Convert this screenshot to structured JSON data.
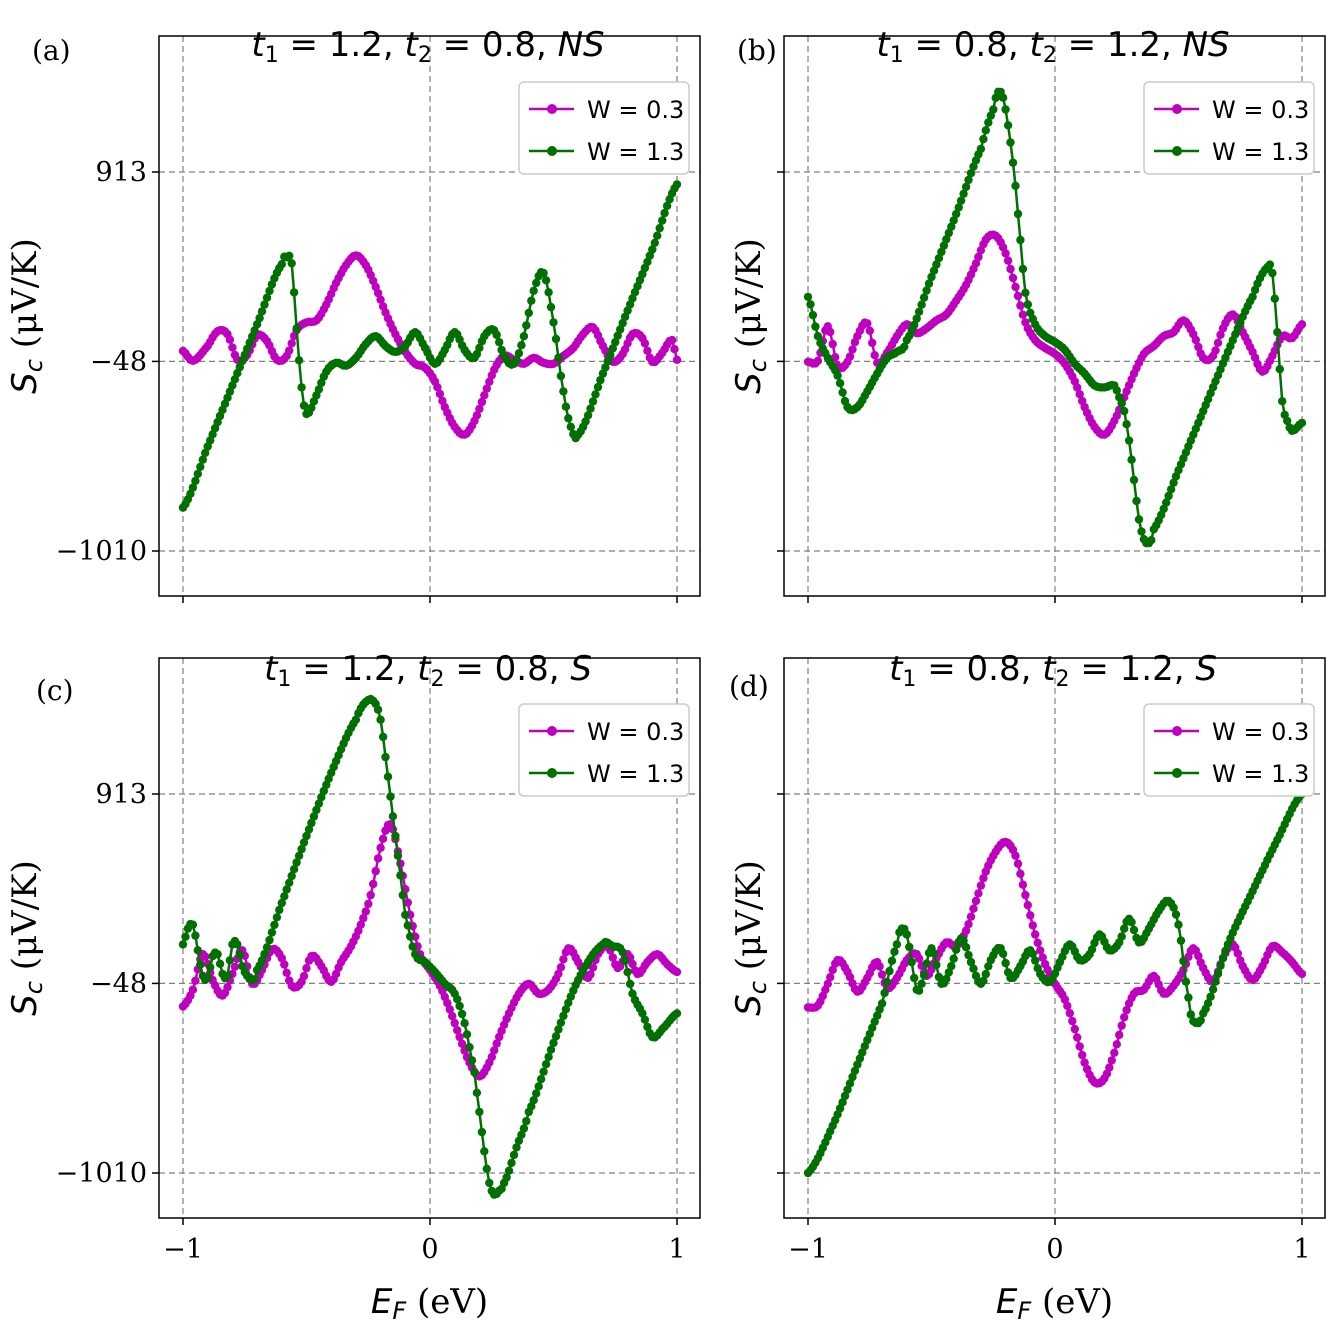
{
  "figure": {
    "x_axis_label": "E_F (eV)",
    "y_axis_label": "S_c (μV/K)",
    "x_ticks": [
      -1,
      0,
      1
    ],
    "x_tick_labels": [
      "−1",
      "0",
      "1"
    ],
    "y_ticks": [
      -1010,
      -48,
      913
    ],
    "y_tick_labels": [
      "−1010",
      "−48",
      "913"
    ],
    "xlim": [
      -1.1,
      1.1
    ],
    "ylim": [
      -1230,
      1580
    ],
    "grid": "on (dashed, at ticks)",
    "legend_placement": "top-right",
    "colors": {
      "W03": "#bf00bf",
      "W13": "#007000",
      "grid": "#808080"
    }
  },
  "chart_data": [
    {
      "type": "line",
      "panel_label": "(a)",
      "title": "t_1 = 1.2, t_2 = 0.8, NS",
      "title_parts": {
        "t1": "1.2",
        "t2": "0.8",
        "phase": "NS"
      },
      "xlabel": "E_F (eV)",
      "ylabel": "S_c (μV/K)",
      "xlim": [
        -1.1,
        1.1
      ],
      "ylim": [
        -1230,
        1580
      ],
      "series": [
        {
          "name": "W = 0.3",
          "color": "#bf00bf",
          "x": [
            -1.0,
            -0.96,
            -0.9,
            -0.86,
            -0.82,
            -0.78,
            -0.74,
            -0.7,
            -0.66,
            -0.62,
            -0.58,
            -0.54,
            -0.5,
            -0.46,
            -0.42,
            -0.38,
            -0.34,
            -0.3,
            -0.26,
            -0.22,
            -0.18,
            -0.14,
            -0.1,
            -0.06,
            -0.02,
            0.02,
            0.06,
            0.1,
            0.14,
            0.18,
            0.22,
            0.26,
            0.3,
            0.34,
            0.38,
            0.42,
            0.46,
            0.5,
            0.54,
            0.58,
            0.62,
            0.66,
            0.7,
            0.74,
            0.78,
            0.82,
            0.86,
            0.9,
            0.94,
            0.98,
            1.0
          ],
          "values": [
            5,
            -45,
            30,
            105,
            90,
            -40,
            -15,
            85,
            55,
            -40,
            -20,
            110,
            150,
            160,
            240,
            350,
            440,
            490,
            440,
            330,
            200,
            90,
            0,
            -60,
            -80,
            -150,
            -280,
            -380,
            -420,
            -350,
            -220,
            -90,
            -20,
            -40,
            -60,
            -30,
            -55,
            -60,
            -20,
            20,
            90,
            125,
            30,
            -50,
            -10,
            90,
            70,
            -50,
            -5,
            60,
            -40
          ]
        },
        {
          "name": "W = 1.3",
          "color": "#007000",
          "x": [
            -1.0,
            -0.9,
            -0.8,
            -0.7,
            -0.6,
            -0.58,
            -0.56,
            -0.54,
            -0.52,
            -0.5,
            -0.46,
            -0.42,
            -0.38,
            -0.34,
            -0.3,
            -0.26,
            -0.22,
            -0.18,
            -0.14,
            -0.1,
            -0.06,
            -0.02,
            0.02,
            0.06,
            0.1,
            0.14,
            0.18,
            0.22,
            0.26,
            0.3,
            0.34,
            0.38,
            0.42,
            0.46,
            0.5,
            0.54,
            0.57,
            0.6,
            0.7,
            0.8,
            0.9,
            1.0
          ],
          "values": [
            -790,
            -480,
            -170,
            140,
            445,
            480,
            450,
            120,
            -180,
            -315,
            -220,
            -100,
            -55,
            -70,
            -30,
            40,
            80,
            30,
            0,
            30,
            100,
            20,
            -60,
            10,
            100,
            10,
            -30,
            80,
            110,
            -20,
            -60,
            80,
            310,
            400,
            150,
            -200,
            -380,
            -420,
            -110,
            210,
            520,
            850
          ]
        }
      ]
    },
    {
      "type": "line",
      "panel_label": "(b)",
      "title": "t_1 = 0.8, t_2 = 1.2, NS",
      "title_parts": {
        "t1": "0.8",
        "t2": "1.2",
        "phase": "NS"
      },
      "xlabel": "",
      "ylabel": "S_c (μV/K)",
      "xlim": [
        -1.1,
        1.1
      ],
      "ylim": [
        -1230,
        1580
      ],
      "series": [
        {
          "name": "W = 0.3",
          "color": "#bf00bf",
          "x": [
            -1.0,
            -0.96,
            -0.92,
            -0.88,
            -0.84,
            -0.8,
            -0.76,
            -0.72,
            -0.68,
            -0.64,
            -0.6,
            -0.56,
            -0.52,
            -0.48,
            -0.44,
            -0.4,
            -0.36,
            -0.32,
            -0.28,
            -0.24,
            -0.2,
            -0.16,
            -0.12,
            -0.08,
            -0.04,
            0.0,
            0.04,
            0.08,
            0.12,
            0.16,
            0.2,
            0.24,
            0.28,
            0.32,
            0.36,
            0.4,
            0.44,
            0.48,
            0.52,
            0.56,
            0.6,
            0.64,
            0.68,
            0.72,
            0.76,
            0.8,
            0.84,
            0.88,
            0.92,
            0.96,
            1.0
          ],
          "values": [
            -50,
            -45,
            130,
            -70,
            -50,
            80,
            145,
            -55,
            -5,
            80,
            140,
            95,
            120,
            160,
            190,
            260,
            340,
            450,
            570,
            590,
            500,
            330,
            150,
            60,
            20,
            -10,
            -60,
            -150,
            -280,
            -380,
            -420,
            -350,
            -230,
            -110,
            -10,
            30,
            80,
            100,
            160,
            90,
            -30,
            -20,
            120,
            190,
            100,
            0,
            -100,
            -20,
            80,
            70,
            140
          ]
        },
        {
          "name": "W = 1.3",
          "color": "#007000",
          "x": [
            -1.0,
            -0.96,
            -0.92,
            -0.88,
            -0.84,
            -0.8,
            -0.76,
            -0.72,
            -0.68,
            -0.64,
            -0.6,
            -0.5,
            -0.4,
            -0.3,
            -0.25,
            -0.23,
            -0.21,
            -0.19,
            -0.17,
            -0.15,
            -0.12,
            -0.08,
            -0.04,
            0.0,
            0.04,
            0.08,
            0.12,
            0.16,
            0.2,
            0.24,
            0.26,
            0.28,
            0.3,
            0.32,
            0.34,
            0.36,
            0.38,
            0.4,
            0.5,
            0.6,
            0.7,
            0.8,
            0.86,
            0.88,
            0.9,
            0.92,
            0.94,
            0.96,
            1.0
          ],
          "values": [
            280,
            80,
            -30,
            -120,
            -280,
            -280,
            -200,
            -110,
            -30,
            0,
            60,
            380,
            700,
            1030,
            1230,
            1320,
            1290,
            1150,
            960,
            700,
            300,
            140,
            80,
            50,
            10,
            -60,
            -110,
            -170,
            -180,
            -170,
            -230,
            -300,
            -450,
            -650,
            -850,
            -950,
            -970,
            -900,
            -600,
            -300,
            0,
            280,
            430,
            400,
            100,
            -250,
            -350,
            -400,
            -360
          ]
        }
      ]
    },
    {
      "type": "line",
      "panel_label": "(c)",
      "title": "t_1 = 1.2, t_2 = 0.8, S",
      "title_parts": {
        "t1": "1.2",
        "t2": "0.8",
        "phase": "S"
      },
      "xlabel": "E_F (eV)",
      "ylabel": "S_c (μV/K)",
      "xlim": [
        -1.1,
        1.1
      ],
      "ylim": [
        -1230,
        1580
      ],
      "series": [
        {
          "name": "W = 0.3",
          "color": "#bf00bf",
          "x": [
            -1.0,
            -0.96,
            -0.92,
            -0.88,
            -0.84,
            -0.8,
            -0.76,
            -0.72,
            -0.68,
            -0.64,
            -0.6,
            -0.56,
            -0.52,
            -0.48,
            -0.44,
            -0.4,
            -0.36,
            -0.32,
            -0.28,
            -0.24,
            -0.2,
            -0.16,
            -0.12,
            -0.08,
            -0.04,
            0.0,
            0.04,
            0.08,
            0.12,
            0.16,
            0.2,
            0.24,
            0.28,
            0.32,
            0.36,
            0.4,
            0.44,
            0.48,
            0.52,
            0.56,
            0.6,
            0.64,
            0.68,
            0.72,
            0.76,
            0.8,
            0.84,
            0.88,
            0.92,
            0.96,
            1.0
          ],
          "values": [
            -165,
            -80,
            100,
            -30,
            -110,
            0,
            120,
            -50,
            20,
            125,
            80,
            -60,
            -40,
            90,
            40,
            -40,
            60,
            140,
            250,
            400,
            640,
            760,
            560,
            300,
            100,
            20,
            -60,
            -180,
            -320,
            -450,
            -520,
            -450,
            -320,
            -200,
            -100,
            -50,
            -100,
            -80,
            0,
            130,
            60,
            -20,
            100,
            140,
            30,
            100,
            0,
            60,
            100,
            50,
            10
          ]
        },
        {
          "name": "W = 1.3",
          "color": "#007000",
          "x": [
            -1.0,
            -0.98,
            -0.96,
            -0.94,
            -0.92,
            -0.9,
            -0.88,
            -0.86,
            -0.84,
            -0.82,
            -0.8,
            -0.78,
            -0.76,
            -0.74,
            -0.72,
            -0.7,
            -0.6,
            -0.5,
            -0.4,
            -0.3,
            -0.25,
            -0.22,
            -0.2,
            -0.18,
            -0.16,
            -0.14,
            -0.12,
            -0.1,
            -0.06,
            -0.02,
            0.02,
            0.06,
            0.1,
            0.14,
            0.18,
            0.2,
            0.22,
            0.24,
            0.26,
            0.28,
            0.3,
            0.35,
            0.4,
            0.5,
            0.6,
            0.7,
            0.74,
            0.78,
            0.82,
            0.86,
            0.9,
            0.94,
            1.0
          ],
          "values": [
            150,
            230,
            250,
            120,
            -10,
            -20,
            90,
            100,
            0,
            -10,
            150,
            150,
            40,
            -10,
            -30,
            20,
            360,
            700,
            1020,
            1290,
            1390,
            1370,
            1290,
            1100,
            900,
            700,
            500,
            300,
            100,
            60,
            10,
            -50,
            -100,
            -250,
            -500,
            -700,
            -900,
            -1060,
            -1120,
            -1100,
            -1060,
            -880,
            -700,
            -350,
            -30,
            150,
            140,
            110,
            -100,
            -200,
            -320,
            -280,
            -200
          ]
        }
      ]
    },
    {
      "type": "line",
      "panel_label": "(d)",
      "title": "t_1 = 0.8, t_2 = 1.2, S",
      "title_parts": {
        "t1": "0.8",
        "t2": "1.2",
        "phase": "S"
      },
      "xlabel": "E_F (eV)",
      "ylabel": "S_c (μV/K)",
      "xlim": [
        -1.1,
        1.1
      ],
      "ylim": [
        -1230,
        1580
      ],
      "series": [
        {
          "name": "W = 0.3",
          "color": "#bf00bf",
          "x": [
            -1.0,
            -0.96,
            -0.92,
            -0.88,
            -0.84,
            -0.8,
            -0.76,
            -0.72,
            -0.68,
            -0.64,
            -0.6,
            -0.56,
            -0.52,
            -0.48,
            -0.44,
            -0.4,
            -0.36,
            -0.32,
            -0.28,
            -0.24,
            -0.2,
            -0.16,
            -0.12,
            -0.08,
            -0.04,
            0.0,
            0.04,
            0.08,
            0.12,
            0.16,
            0.2,
            0.24,
            0.28,
            0.32,
            0.36,
            0.4,
            0.44,
            0.48,
            0.52,
            0.56,
            0.6,
            0.64,
            0.68,
            0.72,
            0.76,
            0.8,
            0.84,
            0.88,
            0.92,
            0.96,
            1.0
          ],
          "values": [
            -170,
            -160,
            -50,
            70,
            10,
            -90,
            -20,
            60,
            -70,
            -20,
            70,
            100,
            -10,
            80,
            160,
            140,
            220,
            370,
            520,
            620,
            670,
            600,
            400,
            200,
            50,
            -50,
            -130,
            -280,
            -450,
            -550,
            -530,
            -400,
            -220,
            -100,
            -80,
            -10,
            -100,
            -60,
            20,
            130,
            30,
            -40,
            80,
            150,
            40,
            -30,
            40,
            140,
            110,
            60,
            0
          ]
        },
        {
          "name": "W = 1.3",
          "color": "#007000",
          "x": [
            -1.0,
            -0.9,
            -0.8,
            -0.7,
            -0.64,
            -0.62,
            -0.6,
            -0.58,
            -0.56,
            -0.54,
            -0.5,
            -0.46,
            -0.42,
            -0.38,
            -0.34,
            -0.3,
            -0.26,
            -0.22,
            -0.18,
            -0.14,
            -0.1,
            -0.06,
            -0.02,
            0.02,
            0.06,
            0.1,
            0.14,
            0.18,
            0.22,
            0.26,
            0.3,
            0.34,
            0.38,
            0.42,
            0.46,
            0.5,
            0.54,
            0.56,
            0.6,
            0.7,
            0.8,
            0.9,
            1.0
          ],
          "values": [
            -1010,
            -770,
            -460,
            -150,
            150,
            230,
            200,
            60,
            -80,
            -50,
            130,
            -50,
            40,
            180,
            60,
            -50,
            70,
            130,
            -20,
            40,
            120,
            0,
            -40,
            60,
            150,
            70,
            100,
            200,
            120,
            160,
            280,
            160,
            230,
            320,
            370,
            250,
            -120,
            -240,
            -200,
            150,
            420,
            680,
            913
          ]
        }
      ]
    }
  ]
}
